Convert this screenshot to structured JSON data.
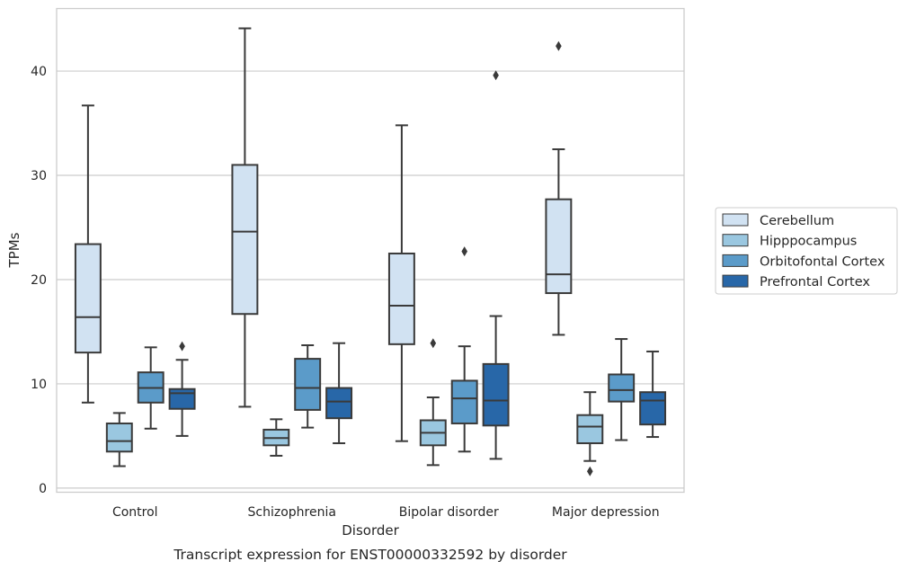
{
  "chart_data": {
    "type": "boxplot",
    "xlabel": "Disorder",
    "ylabel": "TPMs",
    "caption": "Transcript expression for ENST00000332592 by disorder",
    "ylim": [
      -0.4,
      46
    ],
    "yticks": [
      0,
      10,
      20,
      30,
      40
    ],
    "grid": true,
    "legend_placement": "right",
    "categories": [
      "Control",
      "Schizophrenia",
      "Bipolar disorder",
      "Major depression"
    ],
    "series": [
      {
        "name": "Cerebellum",
        "color": "#d1e2f2",
        "boxes": [
          {
            "whislo": 8.2,
            "q1": 13.0,
            "med": 16.4,
            "q3": 23.4,
            "whishi": 36.7,
            "fliers": []
          },
          {
            "whislo": 7.8,
            "q1": 16.7,
            "med": 24.6,
            "q3": 31.0,
            "whishi": 44.1,
            "fliers": []
          },
          {
            "whislo": 4.5,
            "q1": 13.8,
            "med": 17.5,
            "q3": 22.5,
            "whishi": 34.8,
            "fliers": []
          },
          {
            "whislo": 14.7,
            "q1": 18.7,
            "med": 20.5,
            "q3": 27.7,
            "whishi": 32.5,
            "fliers": [
              42.4
            ]
          }
        ]
      },
      {
        "name": "Hipppocampus",
        "color": "#9ac7e0",
        "boxes": [
          {
            "whislo": 2.1,
            "q1": 3.5,
            "med": 4.5,
            "q3": 6.2,
            "whishi": 7.2,
            "fliers": []
          },
          {
            "whislo": 3.1,
            "q1": 4.1,
            "med": 4.8,
            "q3": 5.6,
            "whishi": 6.6,
            "fliers": []
          },
          {
            "whislo": 2.2,
            "q1": 4.1,
            "med": 5.3,
            "q3": 6.5,
            "whishi": 8.7,
            "fliers": [
              13.9
            ]
          },
          {
            "whislo": 2.6,
            "q1": 4.3,
            "med": 5.9,
            "q3": 7.0,
            "whishi": 9.2,
            "fliers": [
              1.6
            ]
          }
        ]
      },
      {
        "name": "Orbitofontal Cortex",
        "color": "#5b9bc9",
        "boxes": [
          {
            "whislo": 5.7,
            "q1": 8.2,
            "med": 9.6,
            "q3": 11.1,
            "whishi": 13.5,
            "fliers": []
          },
          {
            "whislo": 5.8,
            "q1": 7.5,
            "med": 9.6,
            "q3": 12.4,
            "whishi": 13.7,
            "fliers": []
          },
          {
            "whislo": 3.5,
            "q1": 6.2,
            "med": 8.6,
            "q3": 10.3,
            "whishi": 13.6,
            "fliers": [
              22.7
            ]
          },
          {
            "whislo": 4.6,
            "q1": 8.3,
            "med": 9.4,
            "q3": 10.9,
            "whishi": 14.3,
            "fliers": []
          }
        ]
      },
      {
        "name": "Prefrontal Cortex",
        "color": "#2867a8",
        "boxes": [
          {
            "whislo": 5.0,
            "q1": 7.6,
            "med": 9.1,
            "q3": 9.5,
            "whishi": 12.3,
            "fliers": [
              13.6
            ]
          },
          {
            "whislo": 4.3,
            "q1": 6.7,
            "med": 8.3,
            "q3": 9.6,
            "whishi": 13.9,
            "fliers": []
          },
          {
            "whislo": 2.8,
            "q1": 6.0,
            "med": 8.4,
            "q3": 11.9,
            "whishi": 16.5,
            "fliers": [
              39.6
            ]
          },
          {
            "whislo": 4.9,
            "q1": 6.1,
            "med": 8.4,
            "q3": 9.2,
            "whishi": 13.1,
            "fliers": []
          }
        ]
      }
    ]
  }
}
